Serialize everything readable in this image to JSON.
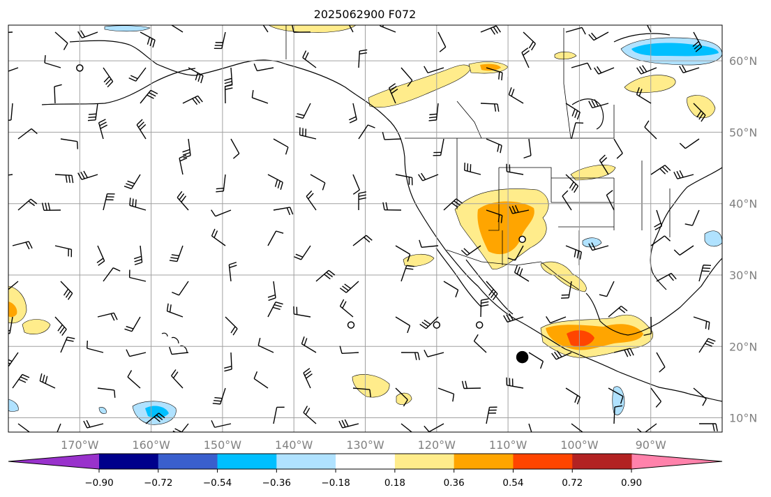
{
  "title": "2025062900 F072",
  "map": {
    "lon_range": [
      -180,
      -80
    ],
    "lat_range": [
      8,
      65
    ],
    "lat_ticks": [
      10,
      20,
      30,
      40,
      50,
      60
    ],
    "lon_ticks": [
      -170,
      -160,
      -150,
      -140,
      -130,
      -120,
      -110,
      -100,
      -90
    ],
    "lat_labels": [
      "10°N",
      "20°N",
      "30°N",
      "40°N",
      "50°N",
      "60°N"
    ],
    "lon_labels": [
      "170°W",
      "160°W",
      "150°W",
      "140°W",
      "130°W",
      "120°W",
      "110°W",
      "100°W",
      "90°W"
    ],
    "grid": true
  },
  "colorbar": {
    "labels": [
      "−0.90",
      "−0.72",
      "−0.54",
      "−0.36",
      "−0.18",
      "0.18",
      "0.36",
      "0.54",
      "0.72",
      "0.90"
    ],
    "levels": [
      -0.9,
      -0.72,
      -0.54,
      -0.36,
      -0.18,
      0.18,
      0.36,
      0.54,
      0.72,
      0.9
    ],
    "colors": [
      "#9932cc",
      "#00008b",
      "#3a5fcd",
      "#00bfff",
      "#b0e2ff",
      "#ffffff",
      "#ffec8b",
      "#ffa500",
      "#ff4500",
      "#b22222",
      "#ff82ab"
    ],
    "extend": "both"
  },
  "markers": [
    {
      "type": "circle-open",
      "lon": -170,
      "lat": 59
    },
    {
      "type": "circle-open",
      "lon": -108,
      "lat": 35
    },
    {
      "type": "circle-open",
      "lon": -132,
      "lat": 23
    },
    {
      "type": "circle-open",
      "lon": -120,
      "lat": 23
    },
    {
      "type": "circle-open",
      "lon": -114,
      "lat": 23
    },
    {
      "type": "circle-filled",
      "lon": -108,
      "lat": 18.5
    }
  ]
}
